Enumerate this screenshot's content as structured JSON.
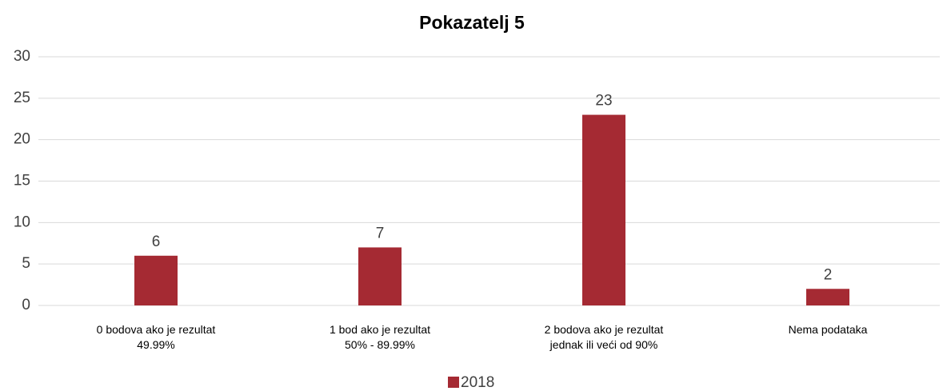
{
  "chart_data": {
    "type": "bar",
    "title": "Pokazatelj 5",
    "categories": [
      "0 bodova ako je rezultat\n49.99%",
      "1 bod ako je rezultat\n50% - 89.99%",
      "2 bodova ako je rezultat\njednak ili veći od 90%",
      "Nema podataka"
    ],
    "series": [
      {
        "name": "2018",
        "color": "#a52a33",
        "values": [
          6,
          7,
          23,
          2
        ]
      }
    ],
    "ylim": [
      0,
      30
    ],
    "yticks": [
      0,
      5,
      10,
      15,
      20,
      25,
      30
    ],
    "grid": true,
    "legend": "bottom"
  }
}
